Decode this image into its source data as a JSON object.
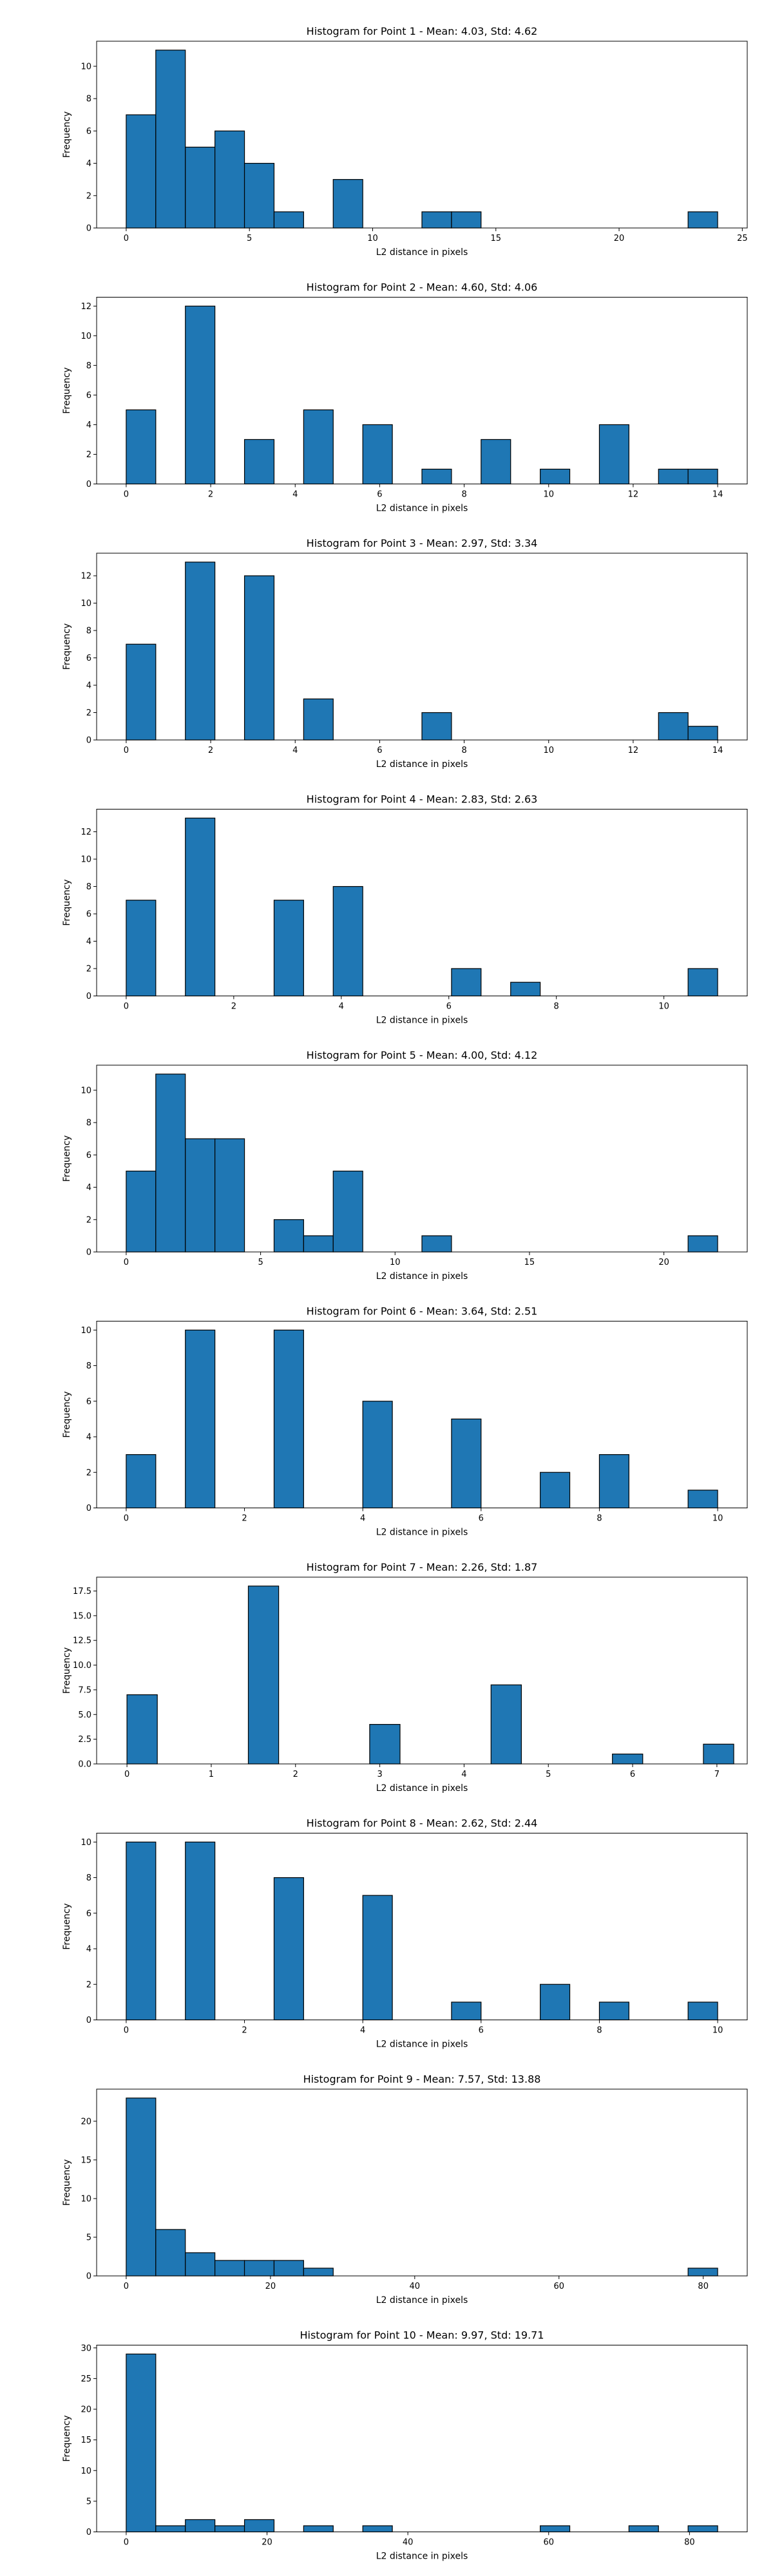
{
  "chart_data": [
    {
      "type": "bar",
      "title": "Histogram for Point 1 - Mean: 4.03, Std: 4.62",
      "xlabel": "L2 distance in pixels",
      "ylabel": "Frequency",
      "xlim": [
        -1.2,
        25.2
      ],
      "ylim": [
        0,
        11.55
      ],
      "xticks": [
        0,
        5,
        10,
        15,
        20,
        25
      ],
      "yticks": [
        0,
        2,
        4,
        6,
        8,
        10
      ],
      "tick_format": "int",
      "bar_color": "#1f77b4",
      "edge_color": "#000000",
      "bins": [
        [
          0,
          1.2
        ],
        [
          1.2,
          2.4
        ],
        [
          2.4,
          3.6
        ],
        [
          3.6,
          4.8
        ],
        [
          4.8,
          6.0
        ],
        [
          6.0,
          7.2
        ],
        [
          7.2,
          8.4
        ],
        [
          8.4,
          9.6
        ],
        [
          9.6,
          10.8
        ],
        [
          10.8,
          12.0
        ],
        [
          12.0,
          13.2
        ],
        [
          13.2,
          14.4
        ],
        [
          14.4,
          15.6
        ],
        [
          15.6,
          16.8
        ],
        [
          16.8,
          18.0
        ],
        [
          18.0,
          19.2
        ],
        [
          19.2,
          20.4
        ],
        [
          20.4,
          21.6
        ],
        [
          21.6,
          22.8
        ],
        [
          22.8,
          24.0
        ]
      ],
      "values": [
        7,
        11,
        5,
        6,
        4,
        1,
        0,
        3,
        0,
        0,
        1,
        1,
        0,
        0,
        0,
        0,
        0,
        0,
        0,
        1
      ]
    },
    {
      "type": "bar",
      "title": "Histogram for Point 2 - Mean: 4.60, Std: 4.06",
      "xlabel": "L2 distance in pixels",
      "ylabel": "Frequency",
      "xlim": [
        -0.7,
        14.7
      ],
      "ylim": [
        0,
        12.6
      ],
      "xticks": [
        0,
        2,
        4,
        6,
        8,
        10,
        12,
        14
      ],
      "yticks": [
        0,
        2,
        4,
        6,
        8,
        10,
        12
      ],
      "tick_format": "int",
      "bar_color": "#1f77b4",
      "edge_color": "#000000",
      "bins": [
        [
          0,
          0.7
        ],
        [
          0.7,
          1.4
        ],
        [
          1.4,
          2.1
        ],
        [
          2.1,
          2.8
        ],
        [
          2.8,
          3.5
        ],
        [
          3.5,
          4.2
        ],
        [
          4.2,
          4.9
        ],
        [
          4.9,
          5.6
        ],
        [
          5.6,
          6.3
        ],
        [
          6.3,
          7.0
        ],
        [
          7.0,
          7.7
        ],
        [
          7.7,
          8.4
        ],
        [
          8.4,
          9.1
        ],
        [
          9.1,
          9.8
        ],
        [
          9.8,
          10.5
        ],
        [
          10.5,
          11.2
        ],
        [
          11.2,
          11.9
        ],
        [
          11.9,
          12.6
        ],
        [
          12.6,
          13.3
        ],
        [
          13.3,
          14.0
        ]
      ],
      "values": [
        5,
        0,
        12,
        0,
        3,
        0,
        5,
        0,
        4,
        0,
        1,
        0,
        3,
        0,
        1,
        0,
        4,
        0,
        1,
        1
      ]
    },
    {
      "type": "bar",
      "title": "Histogram for Point 3 - Mean: 2.97, Std: 3.34",
      "xlabel": "L2 distance in pixels",
      "ylabel": "Frequency",
      "xlim": [
        -0.7,
        14.7
      ],
      "ylim": [
        0,
        13.65
      ],
      "xticks": [
        0,
        2,
        4,
        6,
        8,
        10,
        12,
        14
      ],
      "yticks": [
        0,
        2,
        4,
        6,
        8,
        10,
        12
      ],
      "tick_format": "int",
      "bar_color": "#1f77b4",
      "edge_color": "#000000",
      "bins": [
        [
          0,
          0.7
        ],
        [
          0.7,
          1.4
        ],
        [
          1.4,
          2.1
        ],
        [
          2.1,
          2.8
        ],
        [
          2.8,
          3.5
        ],
        [
          3.5,
          4.2
        ],
        [
          4.2,
          4.9
        ],
        [
          4.9,
          5.6
        ],
        [
          5.6,
          6.3
        ],
        [
          6.3,
          7.0
        ],
        [
          7.0,
          7.7
        ],
        [
          7.7,
          8.4
        ],
        [
          8.4,
          9.1
        ],
        [
          9.1,
          9.8
        ],
        [
          9.8,
          10.5
        ],
        [
          10.5,
          11.2
        ],
        [
          11.2,
          11.9
        ],
        [
          11.9,
          12.6
        ],
        [
          12.6,
          13.3
        ],
        [
          13.3,
          14.0
        ]
      ],
      "values": [
        7,
        0,
        13,
        0,
        12,
        0,
        3,
        0,
        0,
        0,
        2,
        0,
        0,
        0,
        0,
        0,
        0,
        0,
        2,
        1
      ]
    },
    {
      "type": "bar",
      "title": "Histogram for Point 4 - Mean: 2.83, Std: 2.63",
      "xlabel": "L2 distance in pixels",
      "ylabel": "Frequency",
      "xlim": [
        -0.55,
        11.55
      ],
      "ylim": [
        0,
        13.65
      ],
      "xticks": [
        0,
        2,
        4,
        6,
        8,
        10
      ],
      "yticks": [
        0,
        2,
        4,
        6,
        8,
        10,
        12
      ],
      "tick_format": "int",
      "bar_color": "#1f77b4",
      "edge_color": "#000000",
      "bins": [
        [
          0,
          0.55
        ],
        [
          0.55,
          1.1
        ],
        [
          1.1,
          1.65
        ],
        [
          1.65,
          2.2
        ],
        [
          2.2,
          2.75
        ],
        [
          2.75,
          3.3
        ],
        [
          3.3,
          3.85
        ],
        [
          3.85,
          4.4
        ],
        [
          4.4,
          4.95
        ],
        [
          4.95,
          5.5
        ],
        [
          5.5,
          6.05
        ],
        [
          6.05,
          6.6
        ],
        [
          6.6,
          7.15
        ],
        [
          7.15,
          7.7
        ],
        [
          7.7,
          8.25
        ],
        [
          8.25,
          8.8
        ],
        [
          8.8,
          9.35
        ],
        [
          9.35,
          9.9
        ],
        [
          9.9,
          10.45
        ],
        [
          10.45,
          11.0
        ]
      ],
      "values": [
        7,
        0,
        13,
        0,
        0,
        7,
        0,
        8,
        0,
        0,
        0,
        2,
        0,
        1,
        0,
        0,
        0,
        0,
        0,
        2
      ]
    },
    {
      "type": "bar",
      "title": "Histogram for Point 5 - Mean: 4.00, Std: 4.12",
      "xlabel": "L2 distance in pixels",
      "ylabel": "Frequency",
      "xlim": [
        -1.1,
        23.1
      ],
      "ylim": [
        0,
        11.55
      ],
      "xticks": [
        0,
        5,
        10,
        15,
        20
      ],
      "yticks": [
        0,
        2,
        4,
        6,
        8,
        10
      ],
      "tick_format": "int",
      "bar_color": "#1f77b4",
      "edge_color": "#000000",
      "bins": [
        [
          0,
          1.1
        ],
        [
          1.1,
          2.2
        ],
        [
          2.2,
          3.3
        ],
        [
          3.3,
          4.4
        ],
        [
          4.4,
          5.5
        ],
        [
          5.5,
          6.6
        ],
        [
          6.6,
          7.7
        ],
        [
          7.7,
          8.8
        ],
        [
          8.8,
          9.9
        ],
        [
          9.9,
          11.0
        ],
        [
          11.0,
          12.1
        ],
        [
          12.1,
          13.2
        ],
        [
          13.2,
          14.3
        ],
        [
          14.3,
          15.4
        ],
        [
          15.4,
          16.5
        ],
        [
          16.5,
          17.6
        ],
        [
          17.6,
          18.7
        ],
        [
          18.7,
          19.8
        ],
        [
          19.8,
          20.9
        ],
        [
          20.9,
          22.0
        ]
      ],
      "values": [
        5,
        11,
        7,
        7,
        0,
        2,
        1,
        5,
        0,
        0,
        1,
        0,
        0,
        0,
        0,
        0,
        0,
        0,
        0,
        1
      ]
    },
    {
      "type": "bar",
      "title": "Histogram for Point 6 - Mean: 3.64, Std: 2.51",
      "xlabel": "L2 distance in pixels",
      "ylabel": "Frequency",
      "xlim": [
        -0.5,
        10.5
      ],
      "ylim": [
        0,
        10.5
      ],
      "xticks": [
        0,
        2,
        4,
        6,
        8,
        10
      ],
      "yticks": [
        0,
        2,
        4,
        6,
        8,
        10
      ],
      "tick_format": "int",
      "bar_color": "#1f77b4",
      "edge_color": "#000000",
      "bins": [
        [
          0,
          0.5
        ],
        [
          0.5,
          1.0
        ],
        [
          1.0,
          1.5
        ],
        [
          1.5,
          2.0
        ],
        [
          2.0,
          2.5
        ],
        [
          2.5,
          3.0
        ],
        [
          3.0,
          3.5
        ],
        [
          3.5,
          4.0
        ],
        [
          4.0,
          4.5
        ],
        [
          4.5,
          5.0
        ],
        [
          5.0,
          5.5
        ],
        [
          5.5,
          6.0
        ],
        [
          6.0,
          6.5
        ],
        [
          6.5,
          7.0
        ],
        [
          7.0,
          7.5
        ],
        [
          7.5,
          8.0
        ],
        [
          8.0,
          8.5
        ],
        [
          8.5,
          9.0
        ],
        [
          9.0,
          9.5
        ],
        [
          9.5,
          10.0
        ]
      ],
      "values": [
        3,
        0,
        10,
        0,
        0,
        10,
        0,
        0,
        6,
        0,
        0,
        5,
        0,
        0,
        2,
        0,
        3,
        0,
        0,
        1
      ]
    },
    {
      "type": "bar",
      "title": "Histogram for Point 7 - Mean: 2.26, Std: 1.87",
      "xlabel": "L2 distance in pixels",
      "ylabel": "Frequency",
      "xlim": [
        -0.36,
        7.36
      ],
      "ylim": [
        0,
        18.9
      ],
      "xticks": [
        0,
        1,
        2,
        3,
        4,
        5,
        6,
        7
      ],
      "yticks": [
        0,
        2.5,
        5,
        7.5,
        10,
        12.5,
        15,
        17.5
      ],
      "tick_format": "one",
      "bar_color": "#1f77b4",
      "edge_color": "#000000",
      "bins": [
        [
          0,
          0.36
        ],
        [
          0.36,
          0.72
        ],
        [
          0.72,
          1.08
        ],
        [
          1.08,
          1.44
        ],
        [
          1.44,
          1.8
        ],
        [
          1.8,
          2.16
        ],
        [
          2.16,
          2.52
        ],
        [
          2.52,
          2.88
        ],
        [
          2.88,
          3.24
        ],
        [
          3.24,
          3.6
        ],
        [
          3.6,
          3.96
        ],
        [
          3.96,
          4.32
        ],
        [
          4.32,
          4.68
        ],
        [
          4.68,
          5.04
        ],
        [
          5.04,
          5.4
        ],
        [
          5.4,
          5.76
        ],
        [
          5.76,
          6.12
        ],
        [
          6.12,
          6.48
        ],
        [
          6.48,
          6.84
        ],
        [
          6.84,
          7.2
        ]
      ],
      "values": [
        7,
        0,
        0,
        0,
        18,
        0,
        0,
        0,
        4,
        0,
        0,
        0,
        8,
        0,
        0,
        0,
        1,
        0,
        0,
        2
      ]
    },
    {
      "type": "bar",
      "title": "Histogram for Point 8 - Mean: 2.62, Std: 2.44",
      "xlabel": "L2 distance in pixels",
      "ylabel": "Frequency",
      "xlim": [
        -0.5,
        10.5
      ],
      "ylim": [
        0,
        10.5
      ],
      "xticks": [
        0,
        2,
        4,
        6,
        8,
        10
      ],
      "yticks": [
        0,
        2,
        4,
        6,
        8,
        10
      ],
      "tick_format": "int",
      "bar_color": "#1f77b4",
      "edge_color": "#000000",
      "bins": [
        [
          0,
          0.5
        ],
        [
          0.5,
          1.0
        ],
        [
          1.0,
          1.5
        ],
        [
          1.5,
          2.0
        ],
        [
          2.0,
          2.5
        ],
        [
          2.5,
          3.0
        ],
        [
          3.0,
          3.5
        ],
        [
          3.5,
          4.0
        ],
        [
          4.0,
          4.5
        ],
        [
          4.5,
          5.0
        ],
        [
          5.0,
          5.5
        ],
        [
          5.5,
          6.0
        ],
        [
          6.0,
          6.5
        ],
        [
          6.5,
          7.0
        ],
        [
          7.0,
          7.5
        ],
        [
          7.5,
          8.0
        ],
        [
          8.0,
          8.5
        ],
        [
          8.5,
          9.0
        ],
        [
          9.0,
          9.5
        ],
        [
          9.5,
          10.0
        ]
      ],
      "values": [
        10,
        0,
        10,
        0,
        0,
        8,
        0,
        0,
        7,
        0,
        0,
        1,
        0,
        0,
        2,
        0,
        1,
        0,
        0,
        1
      ]
    },
    {
      "type": "bar",
      "title": "Histogram for Point 9 - Mean: 7.57, Std: 13.88",
      "xlabel": "L2 distance in pixels",
      "ylabel": "Frequency",
      "xlim": [
        -4.1,
        86.1
      ],
      "ylim": [
        0,
        24.15
      ],
      "xticks": [
        0,
        20,
        40,
        60,
        80
      ],
      "yticks": [
        0,
        5,
        10,
        15,
        20
      ],
      "tick_format": "int",
      "bar_color": "#1f77b4",
      "edge_color": "#000000",
      "bins": [
        [
          0,
          4.1
        ],
        [
          4.1,
          8.2
        ],
        [
          8.2,
          12.3
        ],
        [
          12.3,
          16.4
        ],
        [
          16.4,
          20.5
        ],
        [
          20.5,
          24.6
        ],
        [
          24.6,
          28.7
        ],
        [
          28.7,
          32.8
        ],
        [
          32.8,
          36.9
        ],
        [
          36.9,
          41.0
        ],
        [
          41.0,
          45.1
        ],
        [
          45.1,
          49.2
        ],
        [
          49.2,
          53.3
        ],
        [
          53.3,
          57.4
        ],
        [
          57.4,
          61.5
        ],
        [
          61.5,
          65.6
        ],
        [
          65.6,
          69.7
        ],
        [
          69.7,
          73.8
        ],
        [
          73.8,
          77.9
        ],
        [
          77.9,
          82.0
        ]
      ],
      "values": [
        23,
        6,
        3,
        2,
        2,
        2,
        1,
        0,
        0,
        0,
        0,
        0,
        0,
        0,
        0,
        0,
        0,
        0,
        0,
        1
      ]
    },
    {
      "type": "bar",
      "title": "Histogram for Point 10 - Mean: 9.97, Std: 19.71",
      "xlabel": "L2 distance in pixels",
      "ylabel": "Frequency",
      "xlim": [
        -4.2,
        88.2
      ],
      "ylim": [
        0,
        30.45
      ],
      "xticks": [
        0,
        20,
        40,
        60,
        80
      ],
      "yticks": [
        0,
        5,
        10,
        15,
        20,
        25,
        30
      ],
      "tick_format": "int",
      "bar_color": "#1f77b4",
      "edge_color": "#000000",
      "bins": [
        [
          0,
          4.2
        ],
        [
          4.2,
          8.4
        ],
        [
          8.4,
          12.6
        ],
        [
          12.6,
          16.8
        ],
        [
          16.8,
          21.0
        ],
        [
          21.0,
          25.2
        ],
        [
          25.2,
          29.4
        ],
        [
          29.4,
          33.6
        ],
        [
          33.6,
          37.8
        ],
        [
          37.8,
          42.0
        ],
        [
          42.0,
          46.2
        ],
        [
          46.2,
          50.4
        ],
        [
          50.4,
          54.6
        ],
        [
          54.6,
          58.8
        ],
        [
          58.8,
          63.0
        ],
        [
          63.0,
          67.2
        ],
        [
          67.2,
          71.4
        ],
        [
          71.4,
          75.6
        ],
        [
          75.6,
          79.8
        ],
        [
          79.8,
          84.0
        ]
      ],
      "values": [
        29,
        1,
        2,
        1,
        2,
        0,
        1,
        0,
        1,
        0,
        0,
        0,
        0,
        0,
        1,
        0,
        0,
        1,
        0,
        1
      ]
    }
  ]
}
